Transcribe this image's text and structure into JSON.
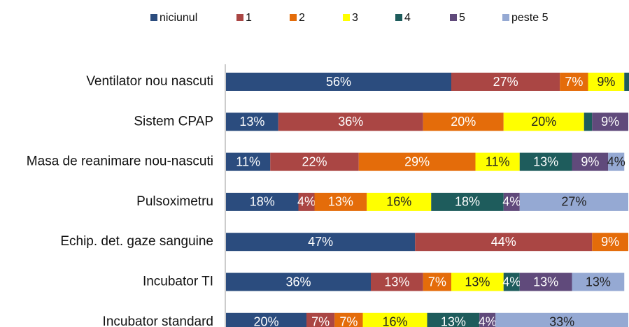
{
  "chart_data": {
    "type": "stacked-bar-horizontal",
    "legend": "top",
    "categories": [
      "Ventilator nou nascuti",
      "Sistem  CPAP",
      "Masa de reanimare nou-nascuti",
      "Pulsoximetru",
      "Echip. det. gaze sanguine",
      "Incubator  TI",
      "Incubator  standard"
    ],
    "xlim": [
      0,
      100
    ],
    "series": [
      {
        "name": "niciunul",
        "color": "#2b4c7e",
        "values": [
          56,
          13,
          11,
          18,
          47,
          36,
          20
        ],
        "value_labels": [
          "56%",
          "13%",
          "11%",
          "18%",
          "47%",
          "36%",
          "20%"
        ]
      },
      {
        "name": "1",
        "color": "#aa4644",
        "values": [
          27,
          36,
          22,
          4,
          44,
          13,
          7
        ],
        "value_labels": [
          "27%",
          "36%",
          "22%",
          "4%",
          "44%",
          "13%",
          "7%"
        ]
      },
      {
        "name": "2",
        "color": "#e46c0a",
        "values": [
          7,
          20,
          29,
          13,
          9,
          7,
          7
        ],
        "value_labels": [
          "7%",
          "20%",
          "29%",
          "13%",
          "9%",
          "7%",
          "7%"
        ]
      },
      {
        "name": "3",
        "color": "#ffff00",
        "values": [
          9,
          20,
          11,
          16,
          0,
          13,
          16
        ],
        "value_labels": [
          "9%",
          "20%",
          "11%",
          "16%",
          null,
          "13%",
          "16%"
        ]
      },
      {
        "name": "4",
        "color": "#1e5c5c",
        "values": [
          2,
          2,
          13,
          18,
          0,
          4,
          13
        ],
        "value_labels": [
          null,
          null,
          "13%",
          "18%",
          null,
          "4%",
          "13%"
        ]
      },
      {
        "name": "5",
        "color": "#604a7b",
        "values": [
          0,
          9,
          9,
          4,
          0,
          13,
          4
        ],
        "value_labels": [
          null,
          "9%",
          "9%",
          "4%",
          null,
          "13%",
          "4%"
        ]
      },
      {
        "name": "peste 5",
        "color": "#95a9d3",
        "values": [
          0,
          0,
          4,
          27,
          0,
          13,
          33
        ],
        "value_labels": [
          null,
          null,
          "4%",
          "27%",
          null,
          "13%",
          "33%"
        ]
      }
    ]
  }
}
